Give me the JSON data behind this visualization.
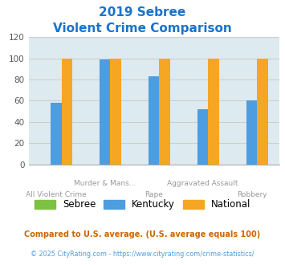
{
  "title_line1": "2019 Sebree",
  "title_line2": "Violent Crime Comparison",
  "title_color": "#1874CD",
  "cat_labels_top": [
    "",
    "Murder & Mans...",
    "",
    "Aggravated Assault",
    ""
  ],
  "cat_labels_bottom": [
    "All Violent Crime",
    "",
    "Rape",
    "",
    "Robbery"
  ],
  "sebree": [
    0,
    0,
    0,
    0,
    0
  ],
  "kentucky": [
    58,
    99,
    83,
    52,
    60
  ],
  "national": [
    100,
    100,
    100,
    100,
    100
  ],
  "sebree_color": "#7dc142",
  "kentucky_color": "#4d9de0",
  "national_color": "#f5a623",
  "ylim": [
    0,
    120
  ],
  "yticks": [
    0,
    20,
    40,
    60,
    80,
    100,
    120
  ],
  "grid_color": "#cccccc",
  "bg_color": "#ddeaf0",
  "footnote1": "Compared to U.S. average. (U.S. average equals 100)",
  "footnote2": "© 2025 CityRating.com - https://www.cityrating.com/crime-statistics/",
  "footnote1_color": "#cc6600",
  "footnote2_color": "#4d9de0"
}
